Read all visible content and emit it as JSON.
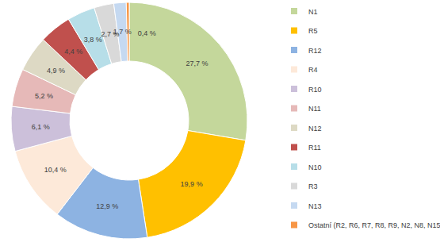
{
  "chart_data": {
    "type": "donut",
    "categories": [
      "N1",
      "R5",
      "R12",
      "R4",
      "R10",
      "N11",
      "N12",
      "R11",
      "N10",
      "R3",
      "N13",
      "Ostatní (R2, R6, R7, R8, R9, N2, N8, N15)"
    ],
    "values": [
      27.7,
      19.9,
      12.9,
      10.4,
      6.1,
      5.2,
      4.9,
      4.4,
      3.8,
      2.7,
      1.7,
      0.4
    ],
    "value_labels": [
      "27,7 %",
      "19,9 %",
      "12,9 %",
      "10,4 %",
      "6,1 %",
      "5,2 %",
      "4,9 %",
      "4,4 %",
      "3,8 %",
      "2,7 %",
      "1,7 %",
      "0,4 %"
    ],
    "colors": [
      "#c4d79b",
      "#ffc000",
      "#8db3e2",
      "#fde9d9",
      "#ccc0da",
      "#e6b9b8",
      "#ddd9c4",
      "#c0504d",
      "#b7dee8",
      "#d9d9d9",
      "#c5d9f1",
      "#f79646"
    ],
    "data_labels": true,
    "legend": "right"
  }
}
